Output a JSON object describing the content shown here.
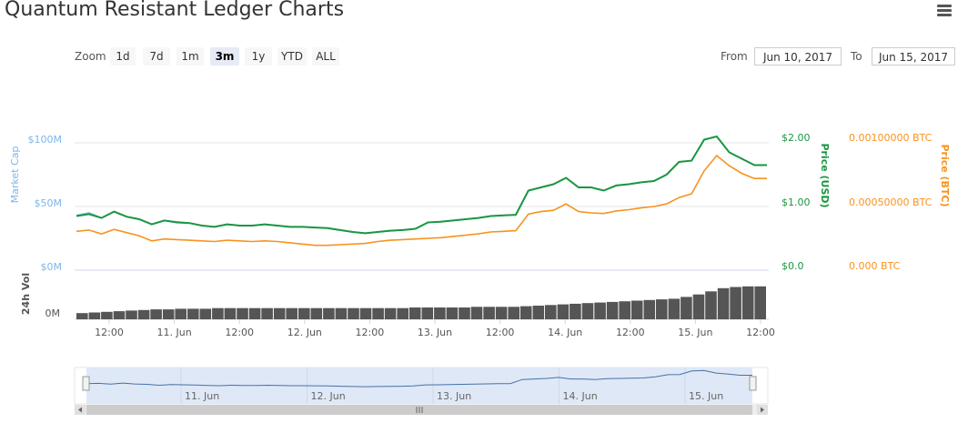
{
  "header": {
    "title": "Quantum Resistant Ledger Charts"
  },
  "toolbar": {
    "zoom_label": "Zoom",
    "zoom_buttons": [
      "1d",
      "7d",
      "1m",
      "3m",
      "1y",
      "YTD",
      "ALL"
    ],
    "active_zoom": "3m",
    "from_label": "From",
    "from_value": "Jun 10, 2017",
    "to_label": "To",
    "to_value": "Jun 15, 2017"
  },
  "colors": {
    "market_cap": "#7cb5ec",
    "price_usd": "#1a9641",
    "price_btc": "#f7931e",
    "volume": "#555555",
    "navigator_fill": "#dbe6f6"
  },
  "chart_data": {
    "type": "line",
    "axes": {
      "market_cap": {
        "label": "Market Cap",
        "ticks": [
          "$0M",
          "$50M",
          "$100M"
        ],
        "range": [
          0,
          100
        ]
      },
      "price_usd": {
        "label": "Price (USD)",
        "ticks": [
          "$0.0",
          "$1.00",
          "$2.00"
        ],
        "range": [
          0,
          2
        ]
      },
      "price_btc": {
        "label": "Price (BTC)",
        "ticks": [
          "0.000 BTC",
          "0.00050000 BTC",
          "0.00100000 BTC"
        ],
        "range": [
          0,
          0.001
        ]
      },
      "volume": {
        "label": "24h Vol",
        "ticks": [
          "0M"
        ]
      },
      "x_ticks": [
        "12:00",
        "11. Jun",
        "12:00",
        "12. Jun",
        "12:00",
        "13. Jun",
        "12:00",
        "14. Jun",
        "12:00",
        "15. Jun",
        "12:00"
      ]
    },
    "navigator_ticks": [
      "11. Jun",
      "12. Jun",
      "13. Jun",
      "14. Jun",
      "15. Jun"
    ],
    "series": [
      {
        "key": "price_usd",
        "axis": "price_usd",
        "values": [
          0.85,
          0.88,
          0.82,
          0.92,
          0.84,
          0.8,
          0.72,
          0.78,
          0.75,
          0.74,
          0.7,
          0.68,
          0.72,
          0.7,
          0.7,
          0.72,
          0.7,
          0.68,
          0.68,
          0.67,
          0.66,
          0.63,
          0.6,
          0.58,
          0.6,
          0.62,
          0.63,
          0.65,
          0.75,
          0.76,
          0.78,
          0.8,
          0.82,
          0.85,
          0.86,
          0.87,
          1.25,
          1.3,
          1.35,
          1.45,
          1.3,
          1.3,
          1.25,
          1.33,
          1.35,
          1.38,
          1.4,
          1.5,
          1.7,
          1.72,
          2.05,
          2.1,
          1.85,
          1.75,
          1.65,
          1.65
        ]
      },
      {
        "key": "price_btc",
        "axis": "price_btc",
        "values": [
          0.000305,
          0.000315,
          0.000285,
          0.00032,
          0.000295,
          0.00027,
          0.00023,
          0.000245,
          0.00024,
          0.000235,
          0.00023,
          0.000225,
          0.000235,
          0.00023,
          0.000225,
          0.00023,
          0.000225,
          0.000215,
          0.000205,
          0.000195,
          0.000195,
          0.0002,
          0.000205,
          0.00021,
          0.000225,
          0.000235,
          0.00024,
          0.000245,
          0.00025,
          0.000255,
          0.000265,
          0.000275,
          0.000285,
          0.0003,
          0.000305,
          0.00031,
          0.00044,
          0.00046,
          0.00047,
          0.00052,
          0.00046,
          0.00045,
          0.000445,
          0.000465,
          0.000475,
          0.00049,
          0.0005,
          0.00052,
          0.00057,
          0.0006,
          0.00078,
          0.0009,
          0.00082,
          0.00076,
          0.00072,
          0.00072
        ]
      },
      {
        "key": "market_cap",
        "axis": "market_cap",
        "values": [
          43,
          45,
          41,
          46,
          42,
          40,
          36,
          39,
          38,
          37,
          35,
          34,
          36,
          35,
          35,
          36,
          35,
          34,
          34,
          33.5,
          33,
          31.5,
          30,
          29,
          30,
          31,
          31.5,
          32.5,
          37.5,
          38,
          39,
          40,
          41,
          42.5,
          43,
          43.5,
          62.5,
          65,
          67.5,
          72.5,
          65,
          65,
          62.5,
          66.5,
          67.5,
          69,
          70,
          75,
          85,
          86,
          102.5,
          105,
          92.5,
          87.5,
          82.5,
          82.5
        ]
      },
      {
        "key": "volume",
        "axis": "volume",
        "values": [
          1,
          1.1,
          1.2,
          1.3,
          1.4,
          1.5,
          1.6,
          1.6,
          1.7,
          1.7,
          1.7,
          1.8,
          1.8,
          1.8,
          1.8,
          1.8,
          1.8,
          1.8,
          1.8,
          1.8,
          1.8,
          1.8,
          1.8,
          1.8,
          1.8,
          1.8,
          1.8,
          1.9,
          1.9,
          1.9,
          1.9,
          1.9,
          2,
          2,
          2,
          2,
          2.1,
          2.2,
          2.3,
          2.4,
          2.5,
          2.6,
          2.7,
          2.8,
          2.9,
          3,
          3.1,
          3.2,
          3.3,
          3.6,
          4,
          4.5,
          5,
          5.2,
          5.3,
          5.3
        ]
      }
    ]
  }
}
